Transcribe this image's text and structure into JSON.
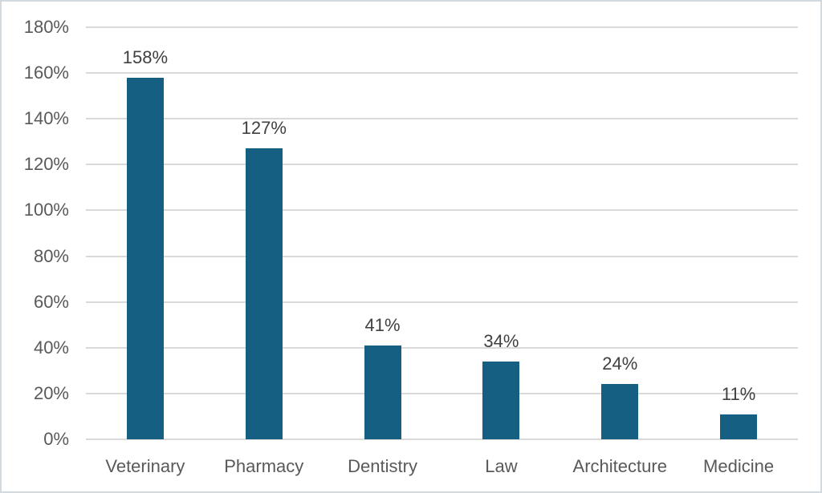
{
  "chart_data": {
    "type": "bar",
    "title": "",
    "xlabel": "",
    "ylabel": "",
    "categories": [
      "Veterinary",
      "Pharmacy",
      "Dentistry",
      "Law",
      "Architecture",
      "Medicine"
    ],
    "values": [
      158,
      127,
      41,
      34,
      24,
      11
    ],
    "data_labels": [
      "158%",
      "127%",
      "41%",
      "34%",
      "24%",
      "11%"
    ],
    "ylim": [
      0,
      180
    ],
    "ytick_step": 20,
    "ytick_labels": [
      "0%",
      "20%",
      "40%",
      "60%",
      "80%",
      "100%",
      "120%",
      "140%",
      "160%",
      "180%"
    ],
    "grid": true,
    "legend": false,
    "colors": {
      "bar": "#156082",
      "gridline": "#d9d9d9",
      "axis_tick_text": "#595959",
      "category_text": "#595959",
      "data_label_text": "#404040",
      "background": "#ffffff",
      "border": "#d2d9df"
    }
  }
}
